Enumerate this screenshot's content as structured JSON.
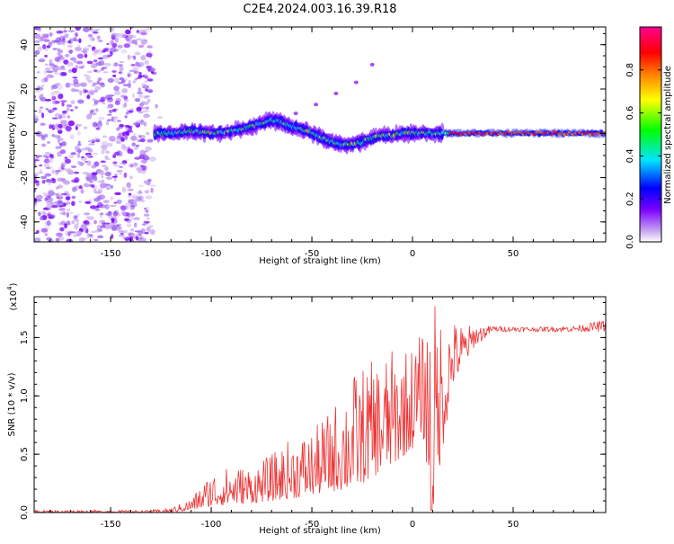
{
  "title": "C2E4.2024.003.16.39.R18",
  "chart_data": [
    {
      "type": "heatmap",
      "xlabel": "Height of straight line (km)",
      "ylabel": "Frequency (Hz)",
      "xlim": [
        -188,
        96
      ],
      "ylim": [
        -49,
        48
      ],
      "xticks": [
        -150,
        -100,
        -50,
        0,
        50
      ],
      "yticks": [
        -40,
        -20,
        0,
        20,
        40
      ],
      "colorbar": {
        "label": "Normalized spectral amplitude",
        "range": [
          0,
          1
        ],
        "ticks": [
          "0.0",
          "0.2",
          "0.4",
          "0.6",
          "0.8"
        ],
        "colors": [
          "#ffffff",
          "#c9a7f0",
          "#7a00ff",
          "#0000ff",
          "#00e5ff",
          "#00ff00",
          "#ffff00",
          "#ff8000",
          "#ff0000",
          "#ff0090"
        ]
      },
      "ridge": {
        "x": [
          -125,
          -120,
          -110,
          -100,
          -90,
          -80,
          -70,
          -65,
          -60,
          -55,
          -50,
          -45,
          -40,
          -35,
          -30,
          -25,
          -20,
          -15,
          -10,
          -5,
          0,
          10,
          20,
          40,
          60,
          80,
          95
        ],
        "frequency": [
          0,
          0,
          1,
          0,
          1,
          3,
          6,
          5,
          3,
          2,
          0,
          -2,
          -4,
          -5,
          -5,
          -4,
          -2,
          -1,
          -1,
          0,
          0,
          0,
          0,
          0,
          0,
          0,
          0
        ]
      }
    },
    {
      "type": "line",
      "xlabel": "Height of straight line (km)",
      "ylabel": "SNR (10 * v/v)",
      "y_multiplier_label": "(x10",
      "y_multiplier_exp": "4",
      "y_multiplier_close": ")",
      "xlim": [
        -188,
        96
      ],
      "ylim": [
        0,
        1.85
      ],
      "xticks": [
        -150,
        -100,
        -50,
        0,
        50
      ],
      "yticks": [
        "0.0",
        "0.5",
        "1.0",
        "1.5"
      ],
      "color": "#ee3333",
      "envelope": {
        "x": [
          -188,
          -130,
          -120,
          -110,
          -100,
          -90,
          -80,
          -70,
          -60,
          -50,
          -40,
          -30,
          -20,
          -10,
          0,
          5,
          10,
          20,
          30,
          40,
          60,
          80,
          96
        ],
        "low": [
          0.0,
          0.0,
          0.0,
          0.02,
          0.05,
          0.07,
          0.08,
          0.1,
          0.12,
          0.15,
          0.18,
          0.2,
          0.3,
          0.4,
          0.55,
          0.7,
          0.0,
          1.1,
          1.4,
          1.55,
          1.55,
          1.55,
          1.55
        ],
        "high": [
          0.02,
          0.02,
          0.04,
          0.12,
          0.35,
          0.4,
          0.4,
          0.5,
          0.65,
          0.7,
          0.9,
          1.2,
          1.3,
          1.4,
          1.45,
          1.55,
          1.85,
          1.65,
          1.6,
          1.6,
          1.59,
          1.6,
          1.65
        ]
      }
    }
  ]
}
